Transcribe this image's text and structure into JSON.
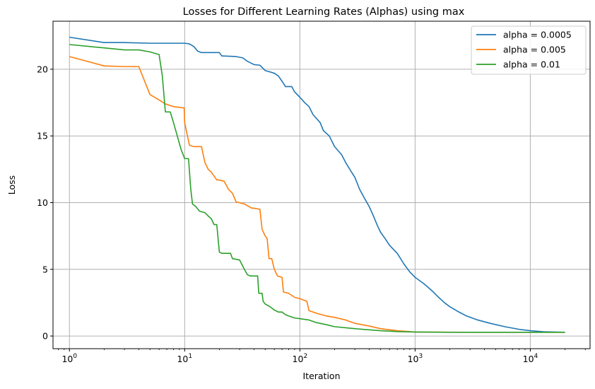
{
  "chart_data": {
    "type": "line",
    "title": "Losses for Different Learning Rates (Alphas) using max",
    "xlabel": "Iteration",
    "ylabel": "Loss",
    "xscale": "log",
    "xlim": [
      0.72,
      33000
    ],
    "ylim": [
      -0.95,
      23.6
    ],
    "grid": true,
    "legend_position": "top-right",
    "x_ticks": [
      1,
      10,
      100,
      1000,
      10000
    ],
    "x_tick_labels": [
      {
        "base": "10",
        "exp": "0"
      },
      {
        "base": "10",
        "exp": "1"
      },
      {
        "base": "10",
        "exp": "2"
      },
      {
        "base": "10",
        "exp": "3"
      },
      {
        "base": "10",
        "exp": "4"
      }
    ],
    "y_ticks": [
      0,
      5,
      10,
      15,
      20
    ],
    "y_tick_labels": [
      "0",
      "5",
      "10",
      "15",
      "20"
    ],
    "series": [
      {
        "name": "alpha = 0.0005",
        "color": "#1f77b4",
        "points": [
          [
            1,
            22.4
          ],
          [
            2,
            22.0
          ],
          [
            3,
            22.0
          ],
          [
            5,
            21.95
          ],
          [
            10,
            21.95
          ],
          [
            11,
            21.9
          ],
          [
            12,
            21.7
          ],
          [
            13,
            21.35
          ],
          [
            14,
            21.25
          ],
          [
            20,
            21.25
          ],
          [
            21,
            21.0
          ],
          [
            28,
            20.95
          ],
          [
            32,
            20.85
          ],
          [
            35,
            20.6
          ],
          [
            40,
            20.35
          ],
          [
            45,
            20.3
          ],
          [
            50,
            19.9
          ],
          [
            55,
            19.8
          ],
          [
            60,
            19.7
          ],
          [
            65,
            19.5
          ],
          [
            70,
            19.1
          ],
          [
            75,
            18.7
          ],
          [
            85,
            18.7
          ],
          [
            90,
            18.3
          ],
          [
            100,
            17.9
          ],
          [
            110,
            17.5
          ],
          [
            120,
            17.2
          ],
          [
            130,
            16.6
          ],
          [
            150,
            16.0
          ],
          [
            160,
            15.4
          ],
          [
            180,
            15.0
          ],
          [
            200,
            14.2
          ],
          [
            230,
            13.6
          ],
          [
            250,
            13.0
          ],
          [
            280,
            12.3
          ],
          [
            300,
            11.9
          ],
          [
            330,
            11.0
          ],
          [
            360,
            10.4
          ],
          [
            400,
            9.7
          ],
          [
            430,
            9.1
          ],
          [
            470,
            8.3
          ],
          [
            500,
            7.8
          ],
          [
            550,
            7.3
          ],
          [
            600,
            6.8
          ],
          [
            700,
            6.2
          ],
          [
            800,
            5.4
          ],
          [
            900,
            4.8
          ],
          [
            1000,
            4.4
          ],
          [
            1200,
            3.9
          ],
          [
            1400,
            3.4
          ],
          [
            1600,
            2.9
          ],
          [
            1800,
            2.5
          ],
          [
            2000,
            2.2
          ],
          [
            2400,
            1.8
          ],
          [
            2800,
            1.5
          ],
          [
            3500,
            1.2
          ],
          [
            4500,
            0.95
          ],
          [
            6000,
            0.7
          ],
          [
            8000,
            0.5
          ],
          [
            10000,
            0.4
          ],
          [
            13000,
            0.32
          ],
          [
            16000,
            0.3
          ],
          [
            20000,
            0.28
          ]
        ]
      },
      {
        "name": "alpha = 0.005",
        "color": "#ff7f0e",
        "points": [
          [
            1,
            20.95
          ],
          [
            2,
            20.25
          ],
          [
            3,
            20.2
          ],
          [
            4,
            20.2
          ],
          [
            5,
            18.1
          ],
          [
            6,
            17.7
          ],
          [
            6.8,
            17.4
          ],
          [
            8,
            17.2
          ],
          [
            9.9,
            17.1
          ],
          [
            10,
            16.0
          ],
          [
            11,
            14.3
          ],
          [
            12,
            14.2
          ],
          [
            14,
            14.2
          ],
          [
            15,
            13.0
          ],
          [
            16,
            12.5
          ],
          [
            17,
            12.3
          ],
          [
            19,
            11.7
          ],
          [
            20,
            11.7
          ],
          [
            22,
            11.6
          ],
          [
            24,
            11.0
          ],
          [
            26,
            10.7
          ],
          [
            28,
            10.05
          ],
          [
            33,
            9.9
          ],
          [
            38,
            9.6
          ],
          [
            42,
            9.55
          ],
          [
            45,
            9.5
          ],
          [
            47,
            8.0
          ],
          [
            50,
            7.5
          ],
          [
            52,
            7.3
          ],
          [
            54,
            5.8
          ],
          [
            57,
            5.8
          ],
          [
            60,
            5.0
          ],
          [
            64,
            4.5
          ],
          [
            70,
            4.4
          ],
          [
            72,
            3.3
          ],
          [
            80,
            3.2
          ],
          [
            90,
            2.9
          ],
          [
            100,
            2.8
          ],
          [
            115,
            2.6
          ],
          [
            120,
            1.9
          ],
          [
            140,
            1.7
          ],
          [
            170,
            1.5
          ],
          [
            200,
            1.4
          ],
          [
            250,
            1.2
          ],
          [
            300,
            0.95
          ],
          [
            400,
            0.75
          ],
          [
            500,
            0.55
          ],
          [
            700,
            0.4
          ],
          [
            1000,
            0.3
          ],
          [
            3000,
            0.28
          ],
          [
            20000,
            0.28
          ]
        ]
      },
      {
        "name": "alpha = 0.01",
        "color": "#2ca02c",
        "points": [
          [
            1,
            21.85
          ],
          [
            2,
            21.6
          ],
          [
            3,
            21.45
          ],
          [
            4,
            21.45
          ],
          [
            5,
            21.3
          ],
          [
            6,
            21.1
          ],
          [
            6.4,
            19.5
          ],
          [
            6.8,
            16.8
          ],
          [
            7.5,
            16.8
          ],
          [
            8,
            16.0
          ],
          [
            8.5,
            15.2
          ],
          [
            9.3,
            14.0
          ],
          [
            10,
            13.3
          ],
          [
            10.8,
            13.3
          ],
          [
            11.3,
            11.0
          ],
          [
            11.7,
            9.9
          ],
          [
            12.5,
            9.7
          ],
          [
            13.5,
            9.35
          ],
          [
            15,
            9.25
          ],
          [
            16,
            9.0
          ],
          [
            17,
            8.8
          ],
          [
            18,
            8.35
          ],
          [
            19,
            8.35
          ],
          [
            20,
            6.3
          ],
          [
            21,
            6.2
          ],
          [
            25,
            6.2
          ],
          [
            26,
            5.8
          ],
          [
            30,
            5.7
          ],
          [
            33,
            5.0
          ],
          [
            35,
            4.6
          ],
          [
            37,
            4.5
          ],
          [
            43,
            4.5
          ],
          [
            44,
            3.2
          ],
          [
            47,
            3.2
          ],
          [
            48,
            2.6
          ],
          [
            50,
            2.4
          ],
          [
            55,
            2.2
          ],
          [
            60,
            1.95
          ],
          [
            65,
            1.8
          ],
          [
            70,
            1.8
          ],
          [
            75,
            1.6
          ],
          [
            80,
            1.5
          ],
          [
            90,
            1.35
          ],
          [
            100,
            1.3
          ],
          [
            120,
            1.2
          ],
          [
            140,
            1.0
          ],
          [
            170,
            0.85
          ],
          [
            200,
            0.7
          ],
          [
            300,
            0.55
          ],
          [
            500,
            0.4
          ],
          [
            700,
            0.33
          ],
          [
            1000,
            0.3
          ],
          [
            2000,
            0.28
          ],
          [
            20000,
            0.28
          ]
        ]
      }
    ]
  }
}
